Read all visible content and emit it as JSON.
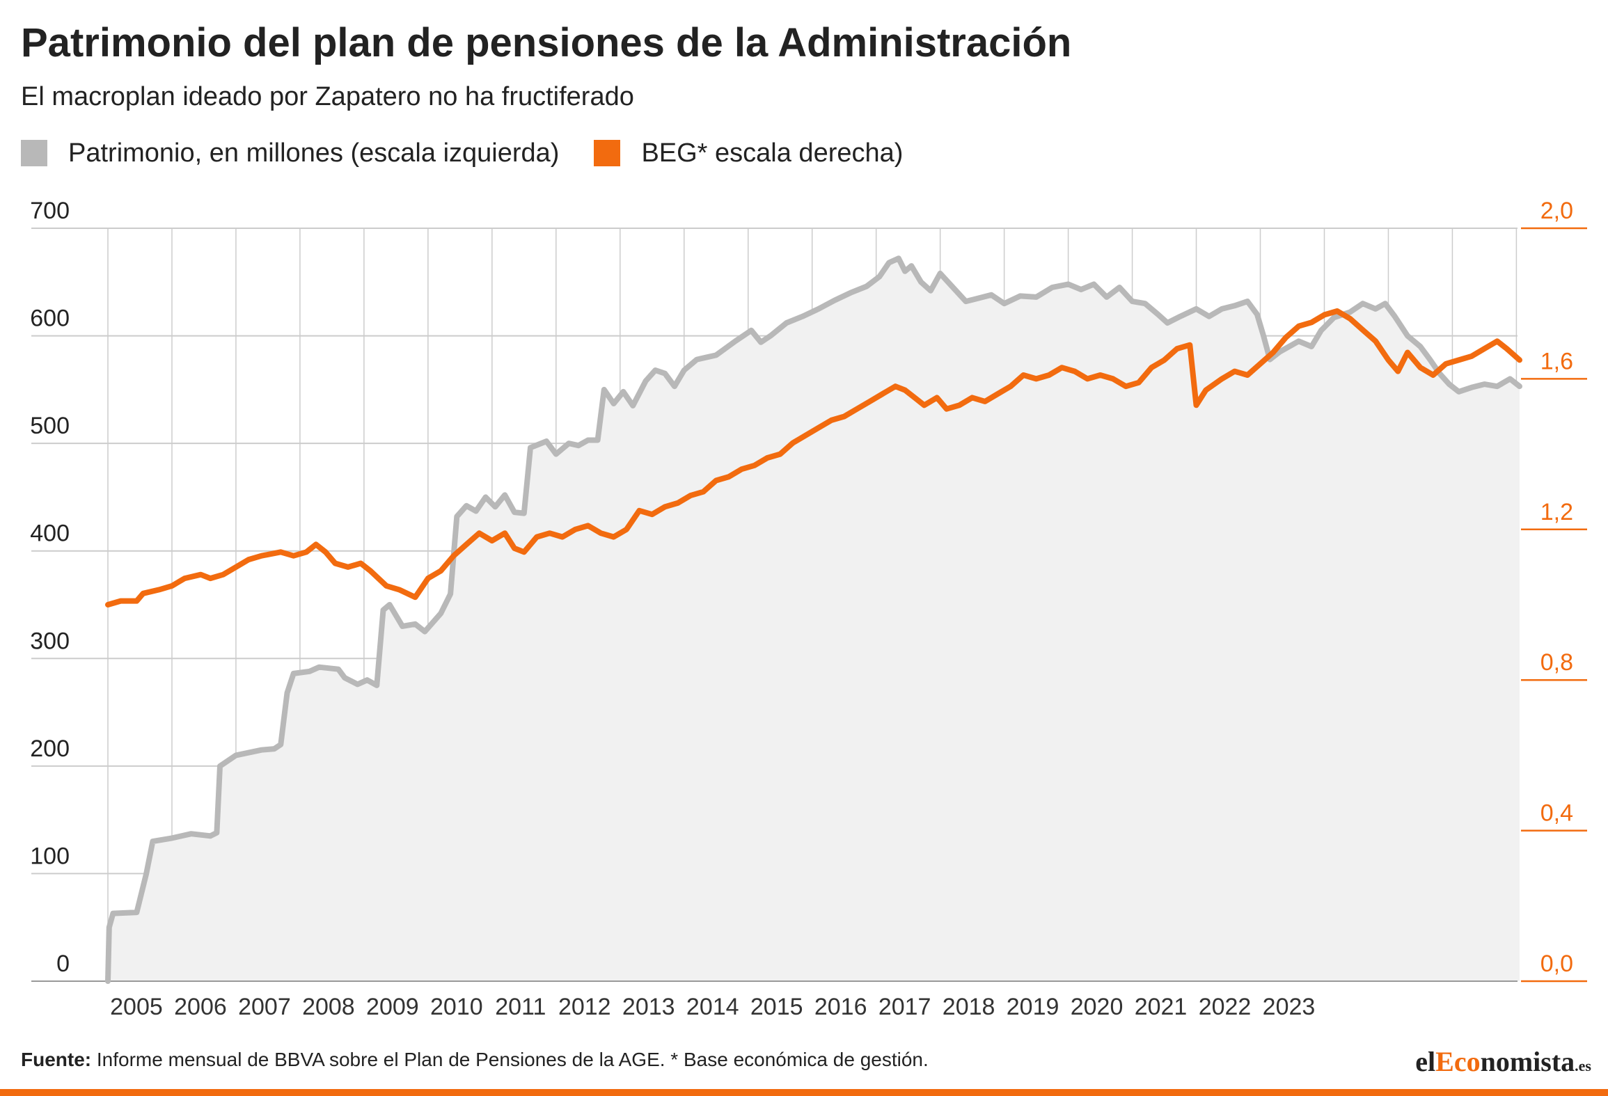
{
  "title": "Patrimonio del plan de pensiones de la Administración",
  "subtitle": "El macroplan ideado por Zapatero no ha fructiferado",
  "legend": [
    {
      "label": "Patrimonio, en millones (escala izquierda)",
      "color": "#b8b8b8"
    },
    {
      "label": "BEG* escala derecha)",
      "color": "#f26b0f"
    }
  ],
  "footer": {
    "source_label": "Fuente:",
    "source_text": " Informe mensual de BBVA sobre el Plan de Pensiones de la AGE. * Base económica de gestión."
  },
  "brand": {
    "prefix": "el",
    "accent": "Eco",
    "suffix": "nomista",
    "tld": ".es"
  },
  "colors": {
    "patrimonio": "#b8b8b8",
    "beg": "#f26b0f",
    "area_fill": "#f1f1f1",
    "grid": "#cccccc"
  },
  "chart_data": {
    "type": "line",
    "x_ticks": [
      "2005",
      "2006",
      "2007",
      "2008",
      "2009",
      "2010",
      "2011",
      "2012",
      "2013",
      "2014",
      "2015",
      "2016",
      "2017",
      "2018",
      "2019",
      "2020",
      "2021",
      "2022",
      "2023"
    ],
    "y_left": {
      "ticks": [
        "0",
        "100",
        "200",
        "300",
        "400",
        "500",
        "600",
        "700"
      ],
      "range": [
        0,
        700
      ]
    },
    "y_right": {
      "ticks": [
        "0,0",
        "0,4",
        "0,8",
        "1,2",
        "1,6",
        "2,0"
      ],
      "range": [
        0.0,
        2.0
      ]
    },
    "grid": true,
    "legend_position": "top-left",
    "series": [
      {
        "name": "Patrimonio, en millones (escala izquierda)",
        "axis": "left",
        "area": true,
        "points": [
          [
            2004.0,
            0
          ],
          [
            2004.02,
            50
          ],
          [
            2004.08,
            63
          ],
          [
            2004.45,
            64
          ],
          [
            2004.6,
            100
          ],
          [
            2004.7,
            130
          ],
          [
            2005.0,
            133
          ],
          [
            2005.3,
            137
          ],
          [
            2005.6,
            135
          ],
          [
            2005.7,
            138
          ],
          [
            2005.75,
            200
          ],
          [
            2006.0,
            210
          ],
          [
            2006.4,
            215
          ],
          [
            2006.6,
            216
          ],
          [
            2006.7,
            220
          ],
          [
            2006.8,
            268
          ],
          [
            2006.9,
            286
          ],
          [
            2007.15,
            288
          ],
          [
            2007.3,
            292
          ],
          [
            2007.6,
            290
          ],
          [
            2007.7,
            282
          ],
          [
            2007.9,
            276
          ],
          [
            2008.05,
            280
          ],
          [
            2008.2,
            275
          ],
          [
            2008.3,
            345
          ],
          [
            2008.4,
            350
          ],
          [
            2008.6,
            330
          ],
          [
            2008.8,
            332
          ],
          [
            2008.95,
            325
          ],
          [
            2009.2,
            342
          ],
          [
            2009.35,
            360
          ],
          [
            2009.45,
            432
          ],
          [
            2009.6,
            442
          ],
          [
            2009.75,
            437
          ],
          [
            2009.9,
            450
          ],
          [
            2010.05,
            441
          ],
          [
            2010.2,
            452
          ],
          [
            2010.35,
            436
          ],
          [
            2010.5,
            435
          ],
          [
            2010.6,
            496
          ],
          [
            2010.85,
            502
          ],
          [
            2011.0,
            490
          ],
          [
            2011.2,
            500
          ],
          [
            2011.35,
            498
          ],
          [
            2011.5,
            503
          ],
          [
            2011.65,
            503
          ],
          [
            2011.75,
            550
          ],
          [
            2011.9,
            537
          ],
          [
            2012.05,
            548
          ],
          [
            2012.2,
            535
          ],
          [
            2012.4,
            558
          ],
          [
            2012.55,
            568
          ],
          [
            2012.7,
            565
          ],
          [
            2012.85,
            553
          ],
          [
            2013.0,
            568
          ],
          [
            2013.2,
            578
          ],
          [
            2013.5,
            582
          ],
          [
            2013.8,
            595
          ],
          [
            2014.05,
            605
          ],
          [
            2014.2,
            594
          ],
          [
            2014.35,
            600
          ],
          [
            2014.6,
            612
          ],
          [
            2014.85,
            618
          ],
          [
            2015.1,
            625
          ],
          [
            2015.35,
            633
          ],
          [
            2015.6,
            640
          ],
          [
            2015.85,
            646
          ],
          [
            2016.05,
            655
          ],
          [
            2016.2,
            668
          ],
          [
            2016.35,
            672
          ],
          [
            2016.45,
            660
          ],
          [
            2016.55,
            665
          ],
          [
            2016.7,
            650
          ],
          [
            2016.85,
            642
          ],
          [
            2017.0,
            658
          ],
          [
            2017.2,
            645
          ],
          [
            2017.4,
            632
          ],
          [
            2017.6,
            635
          ],
          [
            2017.8,
            638
          ],
          [
            2018.0,
            630
          ],
          [
            2018.25,
            637
          ],
          [
            2018.5,
            636
          ],
          [
            2018.75,
            645
          ],
          [
            2019.0,
            648
          ],
          [
            2019.2,
            643
          ],
          [
            2019.4,
            648
          ],
          [
            2019.6,
            636
          ],
          [
            2019.8,
            645
          ],
          [
            2020.0,
            632
          ],
          [
            2020.2,
            630
          ],
          [
            2020.4,
            620
          ],
          [
            2020.55,
            612
          ],
          [
            2020.75,
            618
          ],
          [
            2021.0,
            625
          ],
          [
            2021.2,
            618
          ],
          [
            2021.4,
            625
          ],
          [
            2021.6,
            628
          ],
          [
            2021.8,
            632
          ],
          [
            2021.95,
            620
          ],
          [
            2022.05,
            600
          ],
          [
            2022.15,
            578
          ],
          [
            2022.3,
            585
          ],
          [
            2022.6,
            595
          ],
          [
            2022.8,
            590
          ],
          [
            2022.95,
            605
          ],
          [
            2023.15,
            617
          ],
          [
            2023.4,
            622
          ],
          [
            2023.6,
            630
          ],
          [
            2023.8,
            625
          ],
          [
            2023.95,
            630
          ],
          [
            2024.1,
            618
          ],
          [
            2024.3,
            600
          ],
          [
            2024.5,
            590
          ],
          [
            2024.65,
            578
          ],
          [
            2024.8,
            565
          ],
          [
            2024.95,
            555
          ],
          [
            2025.1,
            548
          ],
          [
            2025.3,
            552
          ],
          [
            2025.5,
            555
          ],
          [
            2025.7,
            553
          ],
          [
            2025.9,
            560
          ],
          [
            2026.05,
            553
          ]
        ]
      },
      {
        "name": "BEG* escala derecha)",
        "axis": "right",
        "area": false,
        "points": [
          [
            2004.0,
            1.0
          ],
          [
            2004.2,
            1.01
          ],
          [
            2004.45,
            1.01
          ],
          [
            2004.55,
            1.03
          ],
          [
            2004.8,
            1.04
          ],
          [
            2005.0,
            1.05
          ],
          [
            2005.2,
            1.07
          ],
          [
            2005.45,
            1.08
          ],
          [
            2005.6,
            1.07
          ],
          [
            2005.8,
            1.08
          ],
          [
            2006.0,
            1.1
          ],
          [
            2006.2,
            1.12
          ],
          [
            2006.4,
            1.13
          ],
          [
            2006.7,
            1.14
          ],
          [
            2006.9,
            1.13
          ],
          [
            2007.1,
            1.14
          ],
          [
            2007.25,
            1.16
          ],
          [
            2007.4,
            1.14
          ],
          [
            2007.55,
            1.11
          ],
          [
            2007.75,
            1.1
          ],
          [
            2007.95,
            1.11
          ],
          [
            2008.1,
            1.09
          ],
          [
            2008.35,
            1.05
          ],
          [
            2008.55,
            1.04
          ],
          [
            2008.8,
            1.02
          ],
          [
            2009.0,
            1.07
          ],
          [
            2009.2,
            1.09
          ],
          [
            2009.4,
            1.13
          ],
          [
            2009.6,
            1.16
          ],
          [
            2009.8,
            1.19
          ],
          [
            2010.0,
            1.17
          ],
          [
            2010.2,
            1.19
          ],
          [
            2010.35,
            1.15
          ],
          [
            2010.5,
            1.14
          ],
          [
            2010.7,
            1.18
          ],
          [
            2010.9,
            1.19
          ],
          [
            2011.1,
            1.18
          ],
          [
            2011.3,
            1.2
          ],
          [
            2011.5,
            1.21
          ],
          [
            2011.7,
            1.19
          ],
          [
            2011.9,
            1.18
          ],
          [
            2012.1,
            1.2
          ],
          [
            2012.3,
            1.25
          ],
          [
            2012.5,
            1.24
          ],
          [
            2012.7,
            1.26
          ],
          [
            2012.9,
            1.27
          ],
          [
            2013.1,
            1.29
          ],
          [
            2013.3,
            1.3
          ],
          [
            2013.5,
            1.33
          ],
          [
            2013.7,
            1.34
          ],
          [
            2013.9,
            1.36
          ],
          [
            2014.1,
            1.37
          ],
          [
            2014.3,
            1.39
          ],
          [
            2014.5,
            1.4
          ],
          [
            2014.7,
            1.43
          ],
          [
            2014.9,
            1.45
          ],
          [
            2015.1,
            1.47
          ],
          [
            2015.3,
            1.49
          ],
          [
            2015.5,
            1.5
          ],
          [
            2015.7,
            1.52
          ],
          [
            2015.9,
            1.54
          ],
          [
            2016.1,
            1.56
          ],
          [
            2016.3,
            1.58
          ],
          [
            2016.45,
            1.57
          ],
          [
            2016.6,
            1.55
          ],
          [
            2016.75,
            1.53
          ],
          [
            2016.95,
            1.55
          ],
          [
            2017.1,
            1.52
          ],
          [
            2017.3,
            1.53
          ],
          [
            2017.5,
            1.55
          ],
          [
            2017.7,
            1.54
          ],
          [
            2017.9,
            1.56
          ],
          [
            2018.1,
            1.58
          ],
          [
            2018.3,
            1.61
          ],
          [
            2018.5,
            1.6
          ],
          [
            2018.7,
            1.61
          ],
          [
            2018.9,
            1.63
          ],
          [
            2019.1,
            1.62
          ],
          [
            2019.3,
            1.6
          ],
          [
            2019.5,
            1.61
          ],
          [
            2019.7,
            1.6
          ],
          [
            2019.9,
            1.58
          ],
          [
            2020.1,
            1.59
          ],
          [
            2020.3,
            1.63
          ],
          [
            2020.5,
            1.65
          ],
          [
            2020.7,
            1.68
          ],
          [
            2020.9,
            1.69
          ],
          [
            2021.0,
            1.53
          ],
          [
            2021.15,
            1.57
          ],
          [
            2021.4,
            1.6
          ],
          [
            2021.6,
            1.62
          ],
          [
            2021.8,
            1.61
          ],
          [
            2022.0,
            1.64
          ],
          [
            2022.2,
            1.67
          ],
          [
            2022.4,
            1.71
          ],
          [
            2022.6,
            1.74
          ],
          [
            2022.8,
            1.75
          ],
          [
            2023.0,
            1.77
          ],
          [
            2023.2,
            1.78
          ],
          [
            2023.4,
            1.76
          ],
          [
            2023.6,
            1.73
          ],
          [
            2023.8,
            1.7
          ],
          [
            2024.0,
            1.65
          ],
          [
            2024.15,
            1.62
          ],
          [
            2024.3,
            1.67
          ],
          [
            2024.5,
            1.63
          ],
          [
            2024.7,
            1.61
          ],
          [
            2024.9,
            1.64
          ],
          [
            2025.1,
            1.65
          ],
          [
            2025.3,
            1.66
          ],
          [
            2025.5,
            1.68
          ],
          [
            2025.7,
            1.7
          ],
          [
            2025.85,
            1.68
          ],
          [
            2026.05,
            1.65
          ]
        ]
      }
    ]
  }
}
